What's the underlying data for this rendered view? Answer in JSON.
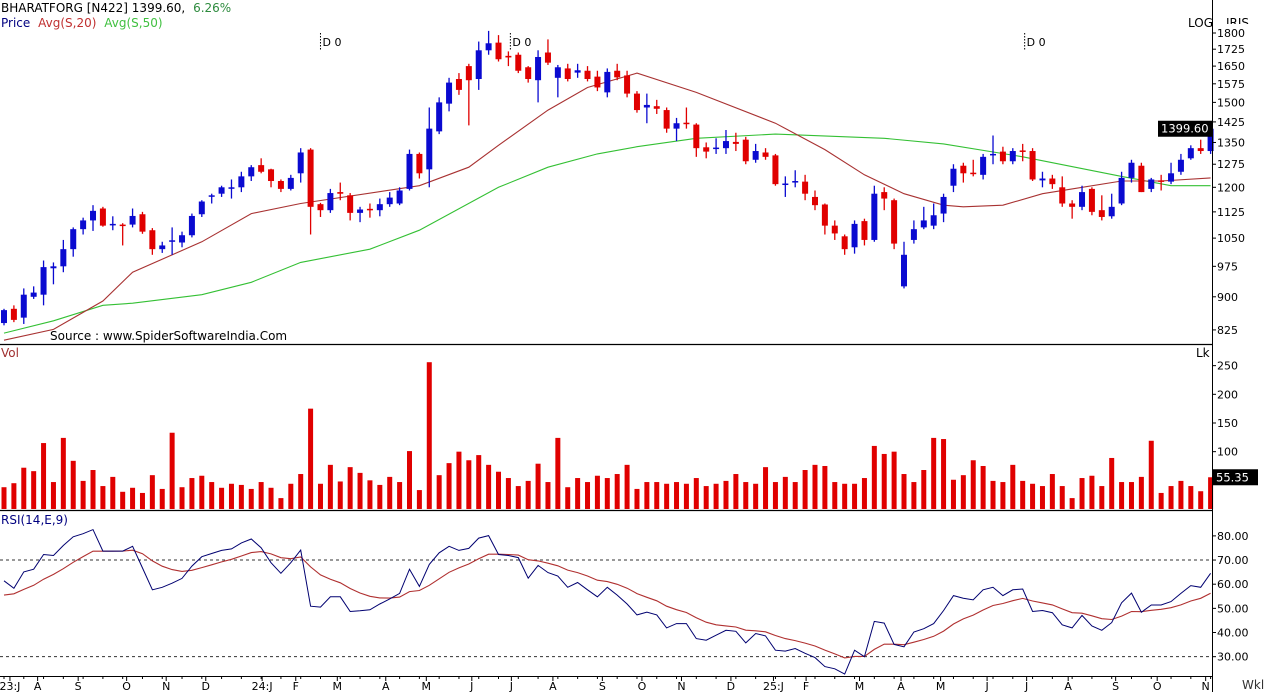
{
  "header": {
    "symbol": "BHARATFORG [N422]",
    "price": "1399.60,",
    "change": "6.26%",
    "legend_price": "Price",
    "legend_ma20": "Avg(S,20)",
    "legend_ma50": "Avg(S,50)",
    "scale_mode": "LOG",
    "scale_extra": "IRIS",
    "source": "Source : www.SpiderSoftwareIndia.Com",
    "x_unit": "Wkl"
  },
  "colors": {
    "up": "#0a0ad0",
    "down": "#e00000",
    "volume": "#e00000",
    "ma20": "#a83232",
    "ma50": "#34c034",
    "rsi": "#000070",
    "signal": "#b03030",
    "change_positive": "#2e8b3e",
    "legend_price": "#000080"
  },
  "chart_data": [
    {
      "type": "candlestick",
      "title": "BHARATFORG [N422] 1399.60, 6.26%",
      "yscale": "log",
      "ylim": [
        795,
        1963
      ],
      "yticks": [
        1800,
        1725,
        1650,
        1575,
        1500,
        1425,
        1350,
        1275,
        1200,
        1125,
        1050,
        975,
        900,
        825
      ],
      "last_price_tag": "1399.60",
      "x_labels": [
        {
          "label": "23:J",
          "at": 0.6
        },
        {
          "label": "A",
          "at": 3.4
        },
        {
          "label": "S",
          "at": 7.5
        },
        {
          "label": "O",
          "at": 12.4
        },
        {
          "label": "N",
          "at": 16.4
        },
        {
          "label": "D",
          "at": 20.4
        },
        {
          "label": "24:J",
          "at": 26.1
        },
        {
          "label": "F",
          "at": 29.5
        },
        {
          "label": "M",
          "at": 33.7
        },
        {
          "label": "A",
          "at": 38.6
        },
        {
          "label": "M",
          "at": 42.7
        },
        {
          "label": "J",
          "at": 47.3
        },
        {
          "label": "J",
          "at": 51.3
        },
        {
          "label": "A",
          "at": 55.5
        },
        {
          "label": "S",
          "at": 60.5
        },
        {
          "label": "O",
          "at": 64.5
        },
        {
          "label": "N",
          "at": 68.5
        },
        {
          "label": "D",
          "at": 73.5
        },
        {
          "label": "25:J",
          "at": 77.8
        },
        {
          "label": "F",
          "at": 81.1
        },
        {
          "label": "M",
          "at": 86.5
        },
        {
          "label": "A",
          "at": 90.7
        },
        {
          "label": "M",
          "at": 94.7
        },
        {
          "label": "J",
          "at": 99.4
        },
        {
          "label": "J",
          "at": 103.4
        },
        {
          "label": "A",
          "at": 107.6
        },
        {
          "label": "S",
          "at": 112.4
        },
        {
          "label": "O",
          "at": 116.6
        },
        {
          "label": "N",
          "at": 121.5
        }
      ],
      "markers": [
        {
          "label": "D 0",
          "at": 32
        },
        {
          "label": "D 0",
          "at": 51.2
        },
        {
          "label": "D 0",
          "at": 103.2
        }
      ],
      "ohlc": [
        [
          840,
          872,
          835,
          869
        ],
        [
          872,
          880,
          842,
          847
        ],
        [
          852,
          920,
          838,
          905
        ],
        [
          900,
          925,
          895,
          910
        ],
        [
          905,
          990,
          880,
          973
        ],
        [
          970,
          985,
          930,
          975
        ],
        [
          975,
          1045,
          960,
          1020
        ],
        [
          1020,
          1080,
          1000,
          1075
        ],
        [
          1075,
          1108,
          1060,
          1100
        ],
        [
          1100,
          1145,
          1070,
          1128
        ],
        [
          1135,
          1140,
          1082,
          1085
        ],
        [
          1087,
          1112,
          1072,
          1090
        ],
        [
          1088,
          1092,
          1030,
          1085
        ],
        [
          1088,
          1135,
          1080,
          1113
        ],
        [
          1118,
          1125,
          1062,
          1068
        ],
        [
          1072,
          1078,
          1005,
          1020
        ],
        [
          1020,
          1040,
          1010,
          1030
        ],
        [
          1040,
          1080,
          1005,
          1044
        ],
        [
          1038,
          1068,
          1025,
          1058
        ],
        [
          1058,
          1120,
          1052,
          1113
        ],
        [
          1118,
          1160,
          1110,
          1156
        ],
        [
          1172,
          1180,
          1150,
          1175
        ],
        [
          1180,
          1205,
          1170,
          1200
        ],
        [
          1197,
          1225,
          1165,
          1200
        ],
        [
          1200,
          1250,
          1185,
          1235
        ],
        [
          1235,
          1272,
          1220,
          1265
        ],
        [
          1272,
          1295,
          1245,
          1250
        ],
        [
          1258,
          1260,
          1200,
          1220
        ],
        [
          1220,
          1225,
          1185,
          1195
        ],
        [
          1195,
          1240,
          1190,
          1230
        ],
        [
          1245,
          1330,
          1215,
          1315
        ],
        [
          1325,
          1330,
          1060,
          1140
        ],
        [
          1148,
          1152,
          1110,
          1130
        ],
        [
          1130,
          1195,
          1122,
          1182
        ],
        [
          1185,
          1215,
          1160,
          1180
        ],
        [
          1175,
          1182,
          1100,
          1122
        ],
        [
          1122,
          1140,
          1095,
          1132
        ],
        [
          1134,
          1150,
          1108,
          1130
        ],
        [
          1130,
          1165,
          1112,
          1148
        ],
        [
          1148,
          1185,
          1140,
          1168
        ],
        [
          1150,
          1200,
          1145,
          1190
        ],
        [
          1195,
          1325,
          1190,
          1310
        ],
        [
          1310,
          1315,
          1228,
          1245
        ],
        [
          1258,
          1480,
          1200,
          1400
        ],
        [
          1390,
          1520,
          1380,
          1500
        ],
        [
          1495,
          1600,
          1465,
          1580
        ],
        [
          1595,
          1620,
          1530,
          1550
        ],
        [
          1650,
          1660,
          1412,
          1590
        ],
        [
          1595,
          1760,
          1550,
          1720
        ],
        [
          1720,
          1810,
          1700,
          1752
        ],
        [
          1755,
          1790,
          1670,
          1680
        ],
        [
          1695,
          1715,
          1650,
          1688
        ],
        [
          1700,
          1710,
          1620,
          1630
        ],
        [
          1645,
          1650,
          1580,
          1595
        ],
        [
          1590,
          1720,
          1500,
          1690
        ],
        [
          1710,
          1770,
          1655,
          1665
        ],
        [
          1600,
          1655,
          1520,
          1645
        ],
        [
          1640,
          1660,
          1585,
          1595
        ],
        [
          1622,
          1660,
          1600,
          1632
        ],
        [
          1630,
          1650,
          1585,
          1595
        ],
        [
          1605,
          1630,
          1545,
          1560
        ],
        [
          1540,
          1640,
          1520,
          1625
        ],
        [
          1630,
          1660,
          1590,
          1602
        ],
        [
          1610,
          1630,
          1520,
          1535
        ],
        [
          1535,
          1545,
          1460,
          1470
        ],
        [
          1480,
          1535,
          1420,
          1490
        ],
        [
          1485,
          1510,
          1455,
          1475
        ],
        [
          1470,
          1480,
          1385,
          1400
        ],
        [
          1400,
          1440,
          1355,
          1420
        ],
        [
          1422,
          1480,
          1400,
          1418
        ],
        [
          1415,
          1420,
          1300,
          1330
        ],
        [
          1333,
          1350,
          1295,
          1318
        ],
        [
          1328,
          1365,
          1310,
          1332
        ],
        [
          1330,
          1395,
          1310,
          1355
        ],
        [
          1352,
          1385,
          1320,
          1345
        ],
        [
          1360,
          1370,
          1275,
          1285
        ],
        [
          1290,
          1345,
          1280,
          1320
        ],
        [
          1315,
          1330,
          1290,
          1300
        ],
        [
          1305,
          1310,
          1205,
          1210
        ],
        [
          1208,
          1235,
          1170,
          1212
        ],
        [
          1215,
          1255,
          1200,
          1220
        ],
        [
          1218,
          1240,
          1160,
          1180
        ],
        [
          1170,
          1190,
          1130,
          1145
        ],
        [
          1147,
          1150,
          1060,
          1085
        ],
        [
          1085,
          1100,
          1045,
          1063
        ],
        [
          1055,
          1060,
          1005,
          1020
        ],
        [
          1025,
          1100,
          1008,
          1090
        ],
        [
          1098,
          1105,
          1030,
          1045
        ],
        [
          1045,
          1205,
          1040,
          1180
        ],
        [
          1185,
          1200,
          1130,
          1165
        ],
        [
          1160,
          1165,
          1020,
          1035
        ],
        [
          925,
          1040,
          920,
          1005
        ],
        [
          1045,
          1100,
          1035,
          1075
        ],
        [
          1080,
          1140,
          1075,
          1100
        ],
        [
          1085,
          1150,
          1075,
          1115
        ],
        [
          1120,
          1180,
          1095,
          1170
        ],
        [
          1205,
          1275,
          1185,
          1260
        ],
        [
          1270,
          1280,
          1215,
          1245
        ],
        [
          1247,
          1290,
          1235,
          1245
        ],
        [
          1240,
          1310,
          1225,
          1300
        ],
        [
          1305,
          1375,
          1275,
          1310
        ],
        [
          1318,
          1335,
          1275,
          1285
        ],
        [
          1285,
          1330,
          1275,
          1320
        ],
        [
          1322,
          1345,
          1285,
          1318
        ],
        [
          1320,
          1330,
          1220,
          1225
        ],
        [
          1222,
          1250,
          1200,
          1228
        ],
        [
          1228,
          1240,
          1195,
          1210
        ],
        [
          1200,
          1235,
          1140,
          1150
        ],
        [
          1150,
          1160,
          1105,
          1140
        ],
        [
          1140,
          1205,
          1130,
          1185
        ],
        [
          1195,
          1200,
          1115,
          1125
        ],
        [
          1130,
          1175,
          1100,
          1110
        ],
        [
          1112,
          1180,
          1105,
          1140
        ],
        [
          1150,
          1250,
          1145,
          1230
        ],
        [
          1230,
          1290,
          1215,
          1280
        ],
        [
          1270,
          1280,
          1185,
          1185
        ],
        [
          1195,
          1230,
          1185,
          1225
        ],
        [
          1222,
          1240,
          1190,
          1220
        ],
        [
          1218,
          1280,
          1210,
          1245
        ],
        [
          1250,
          1310,
          1240,
          1290
        ],
        [
          1295,
          1340,
          1290,
          1330
        ],
        [
          1330,
          1360,
          1310,
          1320
        ],
        [
          1320,
          1420,
          1310,
          1399.6
        ]
      ],
      "ma20": [
        [
          0,
          803
        ],
        [
          5,
          826
        ],
        [
          10,
          890
        ],
        [
          13,
          960
        ],
        [
          20,
          1040
        ],
        [
          25,
          1120
        ],
        [
          30,
          1150
        ],
        [
          42,
          1205
        ],
        [
          47,
          1265
        ],
        [
          50,
          1340
        ],
        [
          55,
          1470
        ],
        [
          59,
          1560
        ],
        [
          64,
          1620
        ],
        [
          70,
          1540
        ],
        [
          78,
          1420
        ],
        [
          83,
          1325
        ],
        [
          87,
          1240
        ],
        [
          91,
          1180
        ],
        [
          95,
          1145
        ],
        [
          97,
          1140
        ],
        [
          101,
          1145
        ],
        [
          105,
          1180
        ],
        [
          108,
          1195
        ],
        [
          113,
          1220
        ],
        [
          117,
          1220
        ],
        [
          122,
          1230
        ]
      ],
      "ma50": [
        [
          0,
          818
        ],
        [
          5,
          845
        ],
        [
          10,
          880
        ],
        [
          13,
          885
        ],
        [
          20,
          905
        ],
        [
          25,
          935
        ],
        [
          30,
          985
        ],
        [
          37,
          1020
        ],
        [
          42,
          1072
        ],
        [
          50,
          1200
        ],
        [
          55,
          1265
        ],
        [
          60,
          1310
        ],
        [
          64,
          1335
        ],
        [
          70,
          1365
        ],
        [
          78,
          1380
        ],
        [
          89,
          1365
        ],
        [
          95,
          1345
        ],
        [
          103,
          1300
        ],
        [
          113,
          1235
        ],
        [
          118,
          1205
        ],
        [
          122,
          1205
        ]
      ]
    },
    {
      "type": "bar",
      "label": "Vol",
      "unit": "Lk",
      "ylim": [
        0,
        286
      ],
      "yticks": [
        100,
        150,
        200,
        250
      ],
      "last_tag": "55.35",
      "values": [
        38,
        45,
        72,
        66,
        115,
        47,
        124,
        84,
        49,
        68,
        40,
        56,
        30,
        37,
        28,
        59,
        35,
        133,
        38,
        54,
        58,
        47,
        37,
        44,
        42,
        35,
        47,
        37,
        19,
        44,
        61,
        175,
        44,
        77,
        48,
        73,
        63,
        50,
        42,
        56,
        47,
        101,
        33,
        256,
        59,
        80,
        100,
        85,
        94,
        77,
        65,
        54,
        40,
        49,
        79,
        47,
        124,
        38,
        54,
        47,
        58,
        54,
        61,
        77,
        35,
        47,
        47,
        44,
        47,
        44,
        54,
        40,
        44,
        49,
        61,
        47,
        44,
        73,
        47,
        56,
        47,
        68,
        77,
        75,
        47,
        44,
        44,
        54,
        110,
        96,
        100,
        61,
        47,
        68,
        124,
        122,
        51,
        59,
        85,
        75,
        49,
        47,
        77,
        49,
        44,
        40,
        61,
        40,
        19,
        54,
        58,
        40,
        89,
        47,
        47,
        56,
        119,
        28,
        40,
        49,
        40,
        31,
        55.35
      ]
    },
    {
      "type": "line",
      "label": "RSI(14,E,9)",
      "ylim": [
        22,
        90.3
      ],
      "yticks": [
        "30.00",
        "40.00",
        "50.00",
        "60.00",
        "70.00",
        "80.00"
      ],
      "ref_lines": [
        30,
        70
      ],
      "signal_period": 9,
      "signal_seed": 54,
      "rsi": [
        61.4,
        58.3,
        65.1,
        66.2,
        72.3,
        71.9,
        76.0,
        79.6,
        80.9,
        82.6,
        73.7,
        73.7,
        73.7,
        75.7,
        66.7,
        57.7,
        58.7,
        60.4,
        62.4,
        67.5,
        71.4,
        72.7,
        74.0,
        74.6,
        77.1,
        78.7,
        75.1,
        68.9,
        64.5,
        68.9,
        74.1,
        50.9,
        50.5,
        54.8,
        54.8,
        48.7,
        49.0,
        49.4,
        51.8,
        53.9,
        56.2,
        66.2,
        59.1,
        68.2,
        73.0,
        75.7,
        74.0,
        74.8,
        79.1,
        80.1,
        72.3,
        71.9,
        71.0,
        62.5,
        67.8,
        64.8,
        63.4,
        58.7,
        60.7,
        57.7,
        54.8,
        58.7,
        55.5,
        51.8,
        47.3,
        48.4,
        47.3,
        41.9,
        43.7,
        43.7,
        37.5,
        36.8,
        38.9,
        40.9,
        40.5,
        35.7,
        39.6,
        38.6,
        32.7,
        32.3,
        33.4,
        31.4,
        29.6,
        25.9,
        25.0,
        22.8,
        32.7,
        30.0,
        44.6,
        43.9,
        35.1,
        34.1,
        40.2,
        41.6,
        43.7,
        49.1,
        55.3,
        54.2,
        53.5,
        57.7,
        58.7,
        55.3,
        57.7,
        58.0,
        48.7,
        49.1,
        48.2,
        43.2,
        41.9,
        47.1,
        42.7,
        40.9,
        44.1,
        52.3,
        56.3,
        48.4,
        51.4,
        51.4,
        52.8,
        56.2,
        59.4,
        58.7,
        64.5
      ]
    }
  ]
}
